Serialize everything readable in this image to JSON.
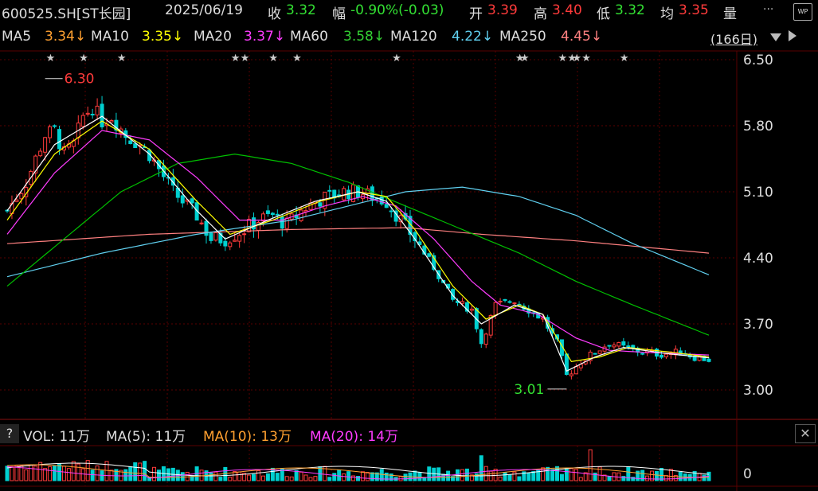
{
  "header": {
    "code": "600525.SH[ST长园]",
    "date": "2025/06/19",
    "close_label": "收",
    "close": "3.32",
    "chg_label": "幅",
    "chg": "-0.90%(-0.03)",
    "open_label": "开",
    "open": "3.39",
    "high_label": "高",
    "high": "3.40",
    "low_label": "低",
    "low": "3.32",
    "avg_label": "均",
    "avg": "3.35",
    "vol_label": "量",
    "more": "...",
    "wp": "WP"
  },
  "ma_bar": {
    "ma5": "MA5",
    "ma5_val": "3.34↓",
    "ma10": "MA10",
    "ma10_val": "3.35↓",
    "ma20": "MA20",
    "ma20_val": "3.37↓",
    "ma60": "MA60",
    "ma60_val": "3.58↓",
    "ma120": "MA120",
    "ma120_val": "4.22↓",
    "ma250": "MA250",
    "ma250_val": "4.45↓",
    "period": "(166日)"
  },
  "vol_bar": {
    "help": "?",
    "vol": "VOL: 11万",
    "ma5": "MA(5): 11万",
    "ma10": "MA(10): 13万",
    "ma20": "MA(20): 14万",
    "close": "✕"
  },
  "colors": {
    "up": "#ff3b3b",
    "down": "#00d0d0",
    "ma5": "#ffffff",
    "ma10": "#ffff00",
    "ma20": "#ff3cff",
    "ma60": "#00c000",
    "ma120": "#60d0f0",
    "ma250": "#ff8080",
    "grid": "#5a0000"
  },
  "chart_data": {
    "type": "candlestick",
    "ylim": [
      3.0,
      6.5
    ],
    "yticks": [
      "6.50",
      "5.80",
      "5.10",
      "4.40",
      "3.70",
      "3.00"
    ],
    "vol_ticks": [
      "0"
    ],
    "annotations": {
      "high": "6.30",
      "low": "3.01"
    },
    "close_anchors": [
      [
        0,
        4.9
      ],
      [
        4,
        5.2
      ],
      [
        8,
        5.7
      ],
      [
        10,
        5.75
      ],
      [
        12,
        5.5
      ],
      [
        14,
        5.6
      ],
      [
        16,
        5.9
      ],
      [
        18,
        6.0
      ],
      [
        20,
        5.85
      ],
      [
        22,
        5.9
      ],
      [
        25,
        5.7
      ],
      [
        28,
        5.6
      ],
      [
        30,
        5.5
      ],
      [
        35,
        5.1
      ],
      [
        40,
        4.85
      ],
      [
        43,
        4.6
      ],
      [
        46,
        4.6
      ],
      [
        50,
        4.7
      ],
      [
        53,
        4.8
      ],
      [
        56,
        4.85
      ],
      [
        59,
        4.75
      ],
      [
        62,
        4.9
      ],
      [
        65,
        5.0
      ],
      [
        68,
        5.05
      ],
      [
        71,
        5.1
      ],
      [
        74,
        5.1
      ],
      [
        77,
        5.05
      ],
      [
        80,
        5.0
      ],
      [
        83,
        4.8
      ],
      [
        86,
        4.6
      ],
      [
        90,
        4.3
      ],
      [
        94,
        3.95
      ],
      [
        98,
        3.85
      ],
      [
        100,
        3.5
      ],
      [
        103,
        3.9
      ],
      [
        107,
        3.95
      ],
      [
        110,
        3.85
      ],
      [
        113,
        3.75
      ],
      [
        116,
        3.5
      ],
      [
        118,
        3.15
      ],
      [
        121,
        3.3
      ],
      [
        124,
        3.4
      ],
      [
        127,
        3.5
      ],
      [
        130,
        3.45
      ],
      [
        134,
        3.4
      ],
      [
        138,
        3.38
      ],
      [
        142,
        3.4
      ],
      [
        145,
        3.35
      ],
      [
        148,
        3.32
      ]
    ],
    "ma5": [
      [
        0,
        4.9
      ],
      [
        10,
        5.6
      ],
      [
        20,
        5.9
      ],
      [
        30,
        5.5
      ],
      [
        40,
        4.9
      ],
      [
        46,
        4.6
      ],
      [
        55,
        4.8
      ],
      [
        65,
        5.0
      ],
      [
        74,
        5.1
      ],
      [
        80,
        5.0
      ],
      [
        86,
        4.6
      ],
      [
        94,
        4.0
      ],
      [
        100,
        3.7
      ],
      [
        107,
        3.9
      ],
      [
        113,
        3.8
      ],
      [
        118,
        3.2
      ],
      [
        124,
        3.35
      ],
      [
        130,
        3.45
      ],
      [
        140,
        3.38
      ],
      [
        148,
        3.34
      ]
    ],
    "ma10": [
      [
        0,
        4.8
      ],
      [
        10,
        5.5
      ],
      [
        20,
        5.85
      ],
      [
        30,
        5.55
      ],
      [
        40,
        5.0
      ],
      [
        47,
        4.65
      ],
      [
        56,
        4.8
      ],
      [
        66,
        5.0
      ],
      [
        74,
        5.1
      ],
      [
        80,
        5.05
      ],
      [
        86,
        4.7
      ],
      [
        94,
        4.1
      ],
      [
        101,
        3.75
      ],
      [
        108,
        3.9
      ],
      [
        113,
        3.8
      ],
      [
        119,
        3.3
      ],
      [
        125,
        3.35
      ],
      [
        131,
        3.45
      ],
      [
        140,
        3.4
      ],
      [
        148,
        3.35
      ]
    ],
    "ma20": [
      [
        0,
        4.65
      ],
      [
        10,
        5.3
      ],
      [
        20,
        5.75
      ],
      [
        30,
        5.65
      ],
      [
        40,
        5.25
      ],
      [
        49,
        4.8
      ],
      [
        58,
        4.8
      ],
      [
        67,
        4.95
      ],
      [
        75,
        5.05
      ],
      [
        82,
        4.95
      ],
      [
        90,
        4.6
      ],
      [
        98,
        4.15
      ],
      [
        104,
        3.9
      ],
      [
        112,
        3.8
      ],
      [
        120,
        3.55
      ],
      [
        127,
        3.42
      ],
      [
        134,
        3.4
      ],
      [
        148,
        3.37
      ]
    ],
    "ma60": [
      [
        0,
        4.1
      ],
      [
        12,
        4.6
      ],
      [
        24,
        5.1
      ],
      [
        36,
        5.4
      ],
      [
        48,
        5.5
      ],
      [
        60,
        5.4
      ],
      [
        72,
        5.2
      ],
      [
        84,
        4.95
      ],
      [
        96,
        4.7
      ],
      [
        108,
        4.45
      ],
      [
        120,
        4.15
      ],
      [
        132,
        3.9
      ],
      [
        148,
        3.58
      ]
    ],
    "ma120": [
      [
        0,
        4.2
      ],
      [
        20,
        4.45
      ],
      [
        40,
        4.65
      ],
      [
        60,
        4.8
      ],
      [
        72,
        4.95
      ],
      [
        84,
        5.1
      ],
      [
        96,
        5.15
      ],
      [
        108,
        5.05
      ],
      [
        120,
        4.85
      ],
      [
        132,
        4.55
      ],
      [
        148,
        4.22
      ]
    ],
    "ma250": [
      [
        0,
        4.55
      ],
      [
        30,
        4.65
      ],
      [
        60,
        4.7
      ],
      [
        84,
        4.72
      ],
      [
        100,
        4.65
      ],
      [
        120,
        4.58
      ],
      [
        148,
        4.45
      ]
    ],
    "stars": [
      9,
      16,
      24,
      48,
      50,
      56,
      61,
      82,
      108,
      109,
      117,
      119,
      120,
      122,
      130
    ]
  }
}
